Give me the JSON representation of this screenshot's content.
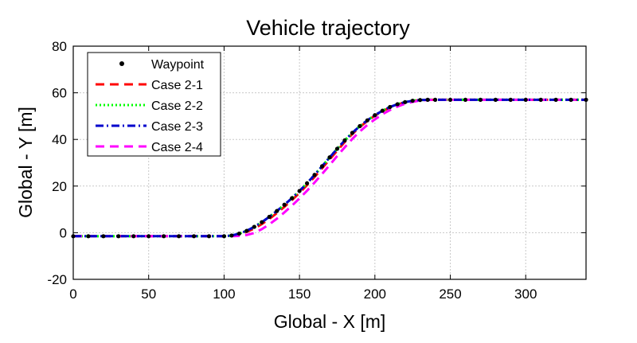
{
  "chart_data": {
    "type": "line",
    "title": "Vehicle trajectory",
    "xlabel": "Global - X [m]",
    "ylabel": "Global - Y [m]",
    "xlim": [
      0,
      340
    ],
    "ylim": [
      -20,
      80
    ],
    "xticks": [
      0,
      50,
      100,
      150,
      200,
      250,
      300
    ],
    "yticks": [
      -20,
      0,
      20,
      40,
      60,
      80
    ],
    "grid": true,
    "legend_position": "top-left",
    "series": [
      {
        "name": "Waypoint",
        "style": "dots",
        "color": "#000000",
        "x": [
          0,
          10,
          20,
          30,
          40,
          50,
          60,
          70,
          80,
          90,
          100,
          105,
          110,
          115,
          120,
          125,
          130,
          135,
          140,
          145,
          150,
          155,
          160,
          165,
          170,
          175,
          180,
          185,
          190,
          195,
          200,
          205,
          210,
          215,
          220,
          225,
          230,
          235,
          240,
          250,
          260,
          270,
          280,
          290,
          300,
          310,
          320,
          330,
          340
        ],
        "y": [
          -1.5,
          -1.5,
          -1.5,
          -1.5,
          -1.5,
          -1.5,
          -1.5,
          -1.5,
          -1.5,
          -1.5,
          -1.5,
          -1.2,
          -0.4,
          0.8,
          2.5,
          4.5,
          6.8,
          9.3,
          12.0,
          14.8,
          17.9,
          21.2,
          24.8,
          28.5,
          32.3,
          36.0,
          39.6,
          42.8,
          45.7,
          48.2,
          50.4,
          52.3,
          53.9,
          55.1,
          56.0,
          56.6,
          56.9,
          57.0,
          57.0,
          57.0,
          57.0,
          57.0,
          57.0,
          57.0,
          57.0,
          57.0,
          57.0,
          57.0,
          57.0
        ]
      },
      {
        "name": "Case 2-1",
        "style": "dashed",
        "color": "#ff0000",
        "x": [
          0,
          20,
          40,
          60,
          80,
          100,
          105,
          110,
          115,
          120,
          125,
          130,
          135,
          140,
          145,
          150,
          155,
          160,
          165,
          170,
          175,
          180,
          185,
          190,
          195,
          200,
          205,
          210,
          215,
          220,
          225,
          230,
          235,
          240,
          260,
          280,
          300,
          320,
          340
        ],
        "y": [
          -1.5,
          -1.5,
          -1.5,
          -1.5,
          -1.5,
          -1.5,
          -1.3,
          -0.7,
          0.3,
          1.8,
          3.7,
          5.9,
          8.4,
          11.1,
          14.0,
          17.1,
          20.4,
          23.9,
          27.6,
          31.4,
          35.2,
          38.9,
          42.3,
          45.3,
          47.9,
          50.2,
          52.1,
          53.7,
          55.0,
          55.9,
          56.5,
          56.9,
          57.0,
          57.0,
          57.0,
          57.0,
          57.0,
          57.0,
          57.0
        ]
      },
      {
        "name": "Case 2-2",
        "style": "dotted",
        "color": "#00ff00",
        "x": [
          0,
          20,
          40,
          60,
          80,
          100,
          105,
          110,
          115,
          120,
          125,
          130,
          135,
          140,
          145,
          150,
          155,
          160,
          165,
          170,
          175,
          180,
          185,
          190,
          195,
          200,
          205,
          210,
          215,
          220,
          225,
          230,
          235,
          240,
          260,
          280,
          300,
          320,
          340
        ],
        "y": [
          -1.5,
          -1.5,
          -1.5,
          -1.5,
          -1.5,
          -1.5,
          -1.2,
          -0.4,
          0.8,
          2.5,
          4.5,
          6.8,
          9.3,
          12.0,
          14.8,
          17.9,
          21.2,
          24.8,
          28.5,
          32.3,
          36.0,
          39.6,
          42.8,
          45.7,
          48.2,
          50.4,
          52.3,
          53.9,
          55.1,
          56.0,
          56.6,
          56.9,
          57.0,
          57.0,
          57.0,
          57.0,
          57.0,
          57.0,
          57.0
        ]
      },
      {
        "name": "Case 2-3",
        "style": "dashdot",
        "color": "#0000cc",
        "x": [
          0,
          20,
          40,
          60,
          80,
          100,
          105,
          110,
          115,
          120,
          125,
          130,
          135,
          140,
          145,
          150,
          155,
          160,
          165,
          170,
          175,
          180,
          185,
          190,
          195,
          200,
          205,
          210,
          215,
          220,
          225,
          230,
          235,
          240,
          260,
          280,
          300,
          320,
          340
        ],
        "y": [
          -1.5,
          -1.5,
          -1.5,
          -1.5,
          -1.5,
          -1.5,
          -1.2,
          -0.4,
          0.8,
          2.5,
          4.5,
          6.8,
          9.3,
          12.0,
          14.8,
          17.9,
          21.2,
          24.8,
          28.5,
          32.3,
          36.0,
          39.6,
          42.8,
          45.7,
          48.2,
          50.4,
          52.3,
          53.9,
          55.1,
          56.0,
          56.6,
          56.9,
          57.0,
          57.0,
          57.0,
          57.0,
          57.0,
          57.0,
          57.0
        ]
      },
      {
        "name": "Case 2-4",
        "style": "dashed",
        "color": "#ff00ff",
        "x": [
          0,
          20,
          40,
          60,
          80,
          100,
          105,
          110,
          115,
          120,
          125,
          130,
          135,
          140,
          145,
          150,
          155,
          160,
          165,
          170,
          175,
          180,
          185,
          190,
          195,
          200,
          205,
          210,
          215,
          220,
          225,
          230,
          235,
          240,
          260,
          280,
          300,
          320,
          340
        ],
        "y": [
          -1.5,
          -1.5,
          -1.5,
          -1.5,
          -1.5,
          -1.5,
          -1.5,
          -1.4,
          -1.0,
          -0.1,
          1.5,
          3.6,
          6.0,
          8.7,
          11.6,
          14.7,
          18.0,
          21.5,
          25.2,
          29.0,
          32.9,
          36.6,
          40.2,
          43.4,
          46.2,
          48.6,
          50.8,
          52.6,
          54.1,
          55.3,
          56.1,
          56.7,
          56.9,
          57.0,
          57.0,
          57.0,
          57.0,
          57.0,
          57.0
        ]
      }
    ]
  }
}
